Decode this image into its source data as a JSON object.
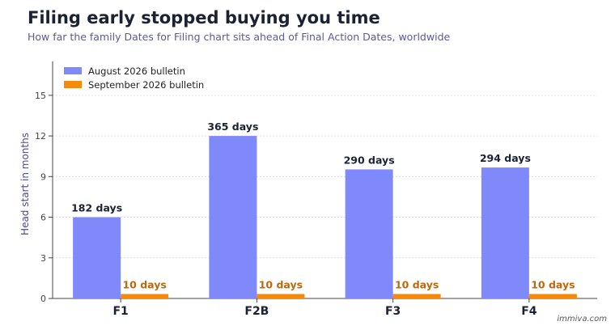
{
  "header": {
    "title": "Filing early stopped buying you time",
    "subtitle": "How far the family Dates for Filing chart sits ahead of Final Action Dates, worldwide"
  },
  "credit": "immiva.com",
  "chart_data": {
    "type": "bar",
    "title": "Filing early stopped buying you time",
    "subtitle": "How far the family Dates for Filing chart sits ahead of Final Action Dates, worldwide",
    "xlabel": "",
    "ylabel": "Head start in months",
    "ylim": [
      0,
      17.5
    ],
    "yticks": [
      0,
      3,
      6,
      9,
      12,
      15
    ],
    "grid": true,
    "legend": "top-left",
    "categories": [
      "F1",
      "F2B",
      "F3",
      "F4"
    ],
    "series": [
      {
        "name": "August 2026 bulletin",
        "color": "#8089f9",
        "values": [
          6.0,
          12.0,
          9.53,
          9.67
        ],
        "labels": [
          "182 days",
          "365 days",
          "290 days",
          "294 days"
        ],
        "label_color": "#1a2233"
      },
      {
        "name": "September 2026 bulletin",
        "color": "#f58a0a",
        "values": [
          0.33,
          0.33,
          0.33,
          0.33
        ],
        "labels": [
          "10 days",
          "10 days",
          "10 days",
          "10 days"
        ],
        "label_color": "#c0670a"
      }
    ]
  }
}
